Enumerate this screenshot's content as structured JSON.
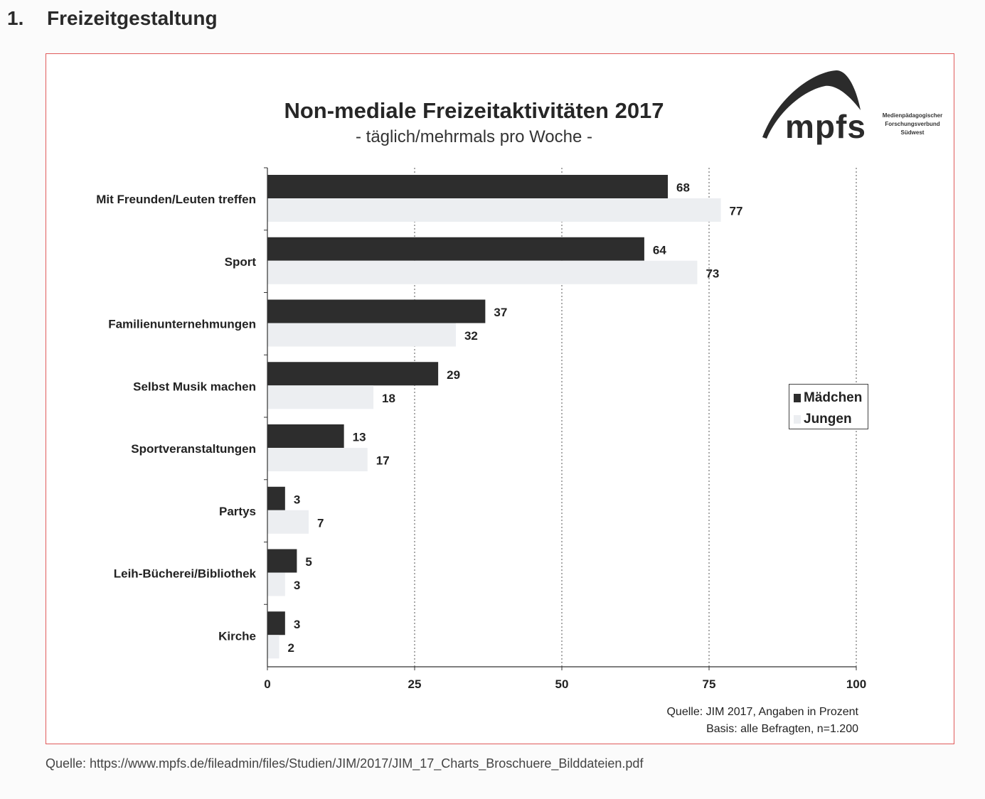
{
  "heading": {
    "number": "1.",
    "text": "Freizeitgestaltung"
  },
  "logo": {
    "wordmark": "mpfs",
    "sub_lines": [
      "Medienpädagogischer",
      "Forschungsverbund",
      "Südwest"
    ]
  },
  "chart_data": {
    "type": "bar",
    "orientation": "horizontal",
    "title": "Non-mediale Freizeitaktivitäten 2017",
    "subtitle": "- täglich/mehrmals pro Woche -",
    "categories": [
      "Mit Freunden/Leuten treffen",
      "Sport",
      "Familienunternehmungen",
      "Selbst Musik machen",
      "Sportveranstaltungen",
      "Partys",
      "Leih-Bücherei/Bibliothek",
      "Kirche"
    ],
    "series": [
      {
        "name": "Mädchen",
        "color": "#2d2d2d",
        "values": [
          68,
          64,
          37,
          29,
          13,
          3,
          5,
          3
        ]
      },
      {
        "name": "Jungen",
        "color": "#eceef1",
        "values": [
          77,
          73,
          32,
          18,
          17,
          7,
          3,
          2
        ]
      }
    ],
    "xlim": [
      0,
      100
    ],
    "xticks": [
      "0",
      "25",
      "50",
      "75",
      "100"
    ],
    "grid": "vertical dashed",
    "legend_position": "right",
    "source_lines": [
      "Quelle: JIM 2017, Angaben in Prozent",
      "Basis: alle Befragten, n=1.200"
    ]
  },
  "footer_source": "Quelle: https://www.mpfs.de/fileadmin/files/Studien/JIM/2017/JIM_17_Charts_Broschuere_Bilddateien.pdf",
  "colors": {
    "frame": "#e05a5a",
    "dark_bar": "#2d2d2d",
    "light_bar": "#eceef1"
  }
}
